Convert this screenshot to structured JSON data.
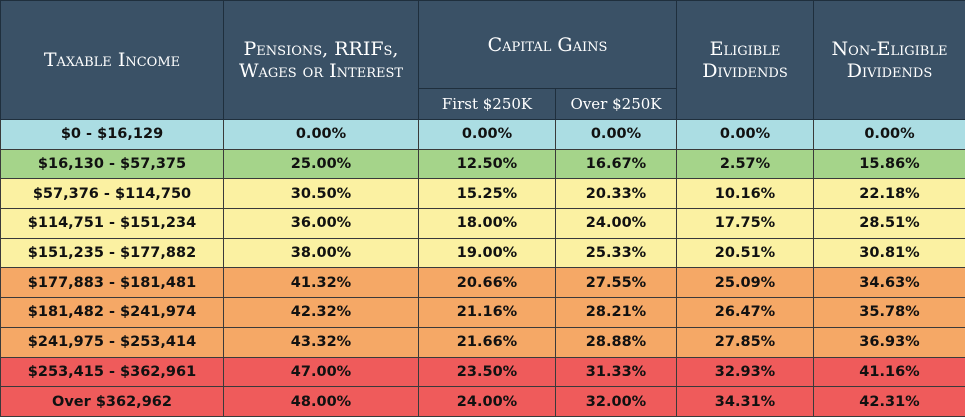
{
  "headers": {
    "taxable_income": "Taxable Income",
    "pensions": "Pensions, RRIFs, Wages or Interest",
    "capital_gains": "Capital Gains",
    "first_250k": "First $250K",
    "over_250k": "Over $250K",
    "eligible": "Eligible Dividends",
    "non_eligible": "Non-Eligible Dividends"
  },
  "colors": {
    "header_bg": "#3a5166",
    "band_blue": "#abdde3",
    "band_green": "#a5d48a",
    "band_yellow": "#fbf1a2",
    "band_orange": "#f5a866",
    "band_red": "#ef5b5b"
  },
  "rows": [
    {
      "band": 0,
      "income": "$0 - $16,129",
      "pensions": "0.00%",
      "cg_first": "0.00%",
      "cg_over": "0.00%",
      "eligible": "0.00%",
      "non_eligible": "0.00%"
    },
    {
      "band": 1,
      "income": "$16,130 - $57,375",
      "pensions": "25.00%",
      "cg_first": "12.50%",
      "cg_over": "16.67%",
      "eligible": "2.57%",
      "non_eligible": "15.86%"
    },
    {
      "band": 2,
      "income": "$57,376 - $114,750",
      "pensions": "30.50%",
      "cg_first": "15.25%",
      "cg_over": "20.33%",
      "eligible": "10.16%",
      "non_eligible": "22.18%"
    },
    {
      "band": 2,
      "income": "$114,751 - $151,234",
      "pensions": "36.00%",
      "cg_first": "18.00%",
      "cg_over": "24.00%",
      "eligible": "17.75%",
      "non_eligible": "28.51%"
    },
    {
      "band": 2,
      "income": "$151,235 - $177,882",
      "pensions": "38.00%",
      "cg_first": "19.00%",
      "cg_over": "25.33%",
      "eligible": "20.51%",
      "non_eligible": "30.81%"
    },
    {
      "band": 3,
      "income": "$177,883 - $181,481",
      "pensions": "41.32%",
      "cg_first": "20.66%",
      "cg_over": "27.55%",
      "eligible": "25.09%",
      "non_eligible": "34.63%"
    },
    {
      "band": 3,
      "income": "$181,482 - $241,974",
      "pensions": "42.32%",
      "cg_first": "21.16%",
      "cg_over": "28.21%",
      "eligible": "26.47%",
      "non_eligible": "35.78%"
    },
    {
      "band": 3,
      "income": "$241,975 - $253,414",
      "pensions": "43.32%",
      "cg_first": "21.66%",
      "cg_over": "28.88%",
      "eligible": "27.85%",
      "non_eligible": "36.93%"
    },
    {
      "band": 4,
      "income": "$253,415 - $362,961",
      "pensions": "47.00%",
      "cg_first": "23.50%",
      "cg_over": "31.33%",
      "eligible": "32.93%",
      "non_eligible": "41.16%"
    },
    {
      "band": 4,
      "income": "Over $362,962",
      "pensions": "48.00%",
      "cg_first": "24.00%",
      "cg_over": "32.00%",
      "eligible": "34.31%",
      "non_eligible": "42.31%"
    }
  ]
}
